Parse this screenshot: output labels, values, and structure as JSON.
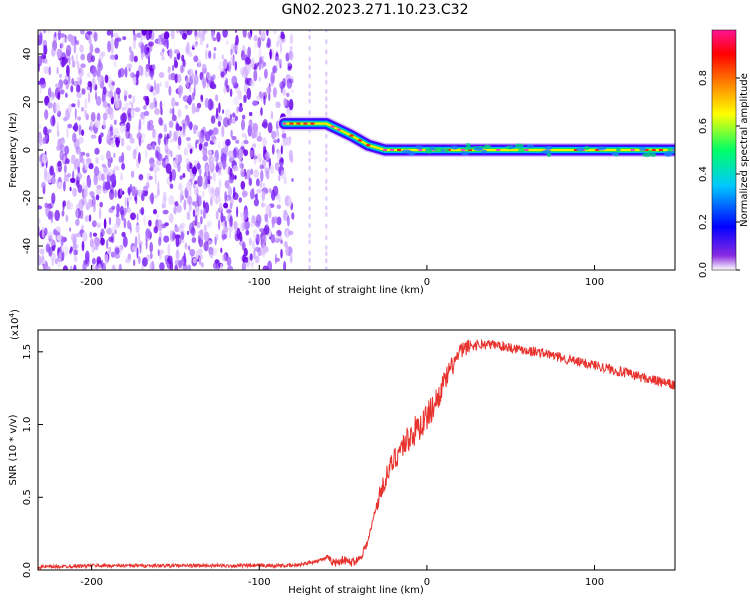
{
  "figure": {
    "title": "GN02.2023.271.10.23.C32"
  },
  "chart_data": [
    {
      "type": "heatmap",
      "xlabel": "Height of straight line (km)",
      "ylabel": "Frequency (Hz)",
      "xlim": [
        -232,
        148
      ],
      "ylim": [
        -50,
        50
      ],
      "x_ticks": [
        -200,
        -100,
        0,
        100
      ],
      "y_ticks": [
        -40,
        -20,
        0,
        20,
        40
      ],
      "grid": false,
      "colorbar": {
        "label": "Normalized spectral amplitude",
        "range": [
          0,
          1
        ],
        "ticks": [
          0.0,
          0.2,
          0.4,
          0.6,
          0.8
        ],
        "tick_labels": [
          "0.0",
          "0.2",
          "0.4",
          "0.6",
          "0.8"
        ],
        "colormap": [
          "#ffffff",
          "#6a00ff",
          "#0000ff",
          "#00c8ff",
          "#00ff66",
          "#ffff00",
          "#ff7f00",
          "#ff0000",
          "#ff1493"
        ]
      },
      "noise_region_x": [
        -232,
        -80
      ],
      "signal_track": [
        {
          "x": -85,
          "freq": 11
        },
        {
          "x": -60,
          "freq": 11
        },
        {
          "x": -45,
          "freq": 6
        },
        {
          "x": -35,
          "freq": 2
        },
        {
          "x": -25,
          "freq": 0
        },
        {
          "x": 148,
          "freq": 0
        }
      ]
    },
    {
      "type": "line",
      "xlabel": "Height of straight line (km)",
      "ylabel": "SNR (10 * v/v)",
      "y_multiplier_label": "(x10",
      "y_multiplier_exp": "4",
      "y_multiplier_close": ")",
      "xlim": [
        -232,
        148
      ],
      "ylim": [
        0,
        1.65
      ],
      "x_ticks": [
        -200,
        -100,
        0,
        100
      ],
      "y_ticks": [
        0.0,
        0.5,
        1.0,
        1.5
      ],
      "y_tick_labels": [
        "0.0",
        "0.5",
        "1.0",
        "1.5"
      ],
      "color": "#e8322d",
      "series": [
        {
          "x": [
            -232,
            -200,
            -150,
            -100,
            -80,
            -70,
            -60,
            -55,
            -50,
            -45,
            -40,
            -35,
            -30,
            -25,
            -20,
            -15,
            -10,
            -5,
            0,
            5,
            10,
            15,
            20,
            25,
            30,
            40,
            50,
            60,
            70,
            80,
            90,
            100,
            110,
            120,
            130,
            140,
            148
          ],
          "values": [
            0.02,
            0.03,
            0.03,
            0.03,
            0.03,
            0.05,
            0.08,
            0.05,
            0.07,
            0.05,
            0.08,
            0.2,
            0.45,
            0.62,
            0.75,
            0.85,
            0.92,
            0.98,
            1.05,
            1.15,
            1.28,
            1.4,
            1.5,
            1.54,
            1.55,
            1.55,
            1.53,
            1.51,
            1.49,
            1.46,
            1.43,
            1.41,
            1.38,
            1.35,
            1.32,
            1.29,
            1.27
          ]
        }
      ]
    }
  ]
}
